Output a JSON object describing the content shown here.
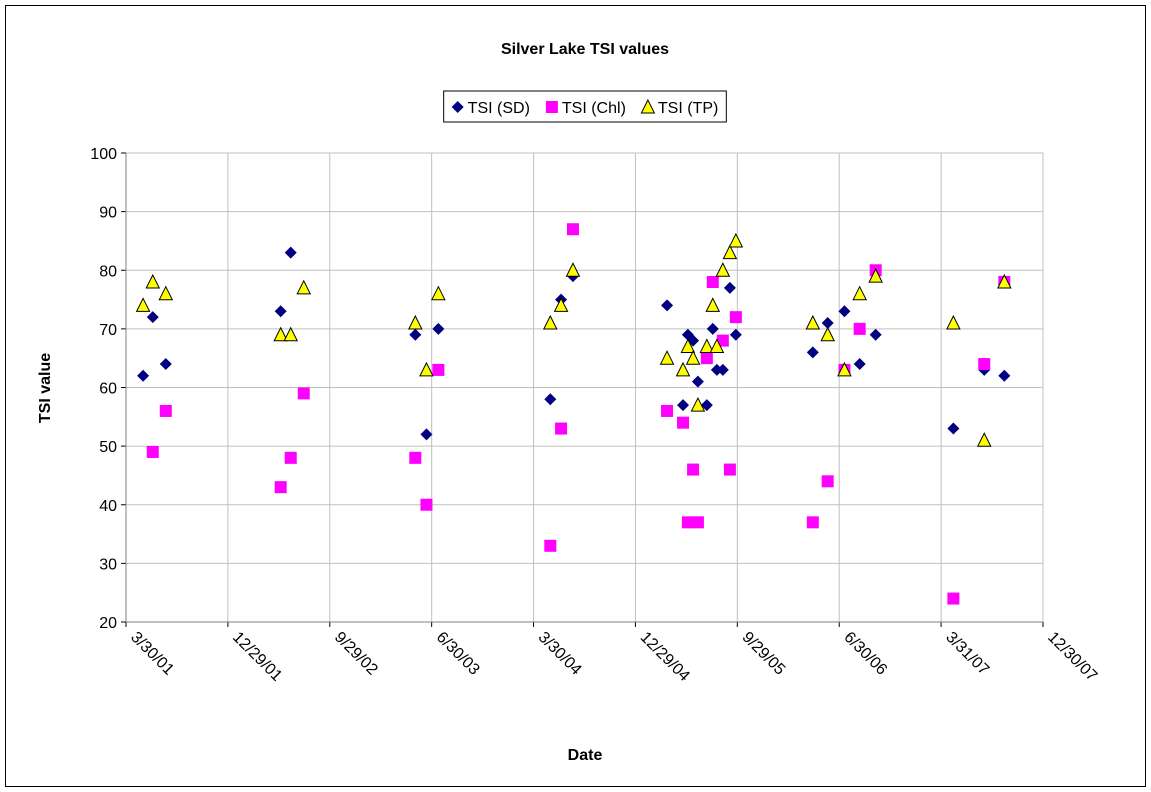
{
  "chart_data": {
    "type": "scatter",
    "title": "Silver Lake TSI values",
    "xlabel": "Date",
    "ylabel": "TSI value",
    "xlim": [
      "2001-03-30",
      "2007-12-30"
    ],
    "xticks": [
      {
        "value": "2001-03-30",
        "label": "3/30/01"
      },
      {
        "value": "2001-12-29",
        "label": "12/29/01"
      },
      {
        "value": "2002-09-29",
        "label": "9/29/02"
      },
      {
        "value": "2003-06-30",
        "label": "6/30/03"
      },
      {
        "value": "2004-03-30",
        "label": "3/30/04"
      },
      {
        "value": "2004-12-29",
        "label": "12/29/04"
      },
      {
        "value": "2005-09-29",
        "label": "9/29/05"
      },
      {
        "value": "2006-06-30",
        "label": "6/30/06"
      },
      {
        "value": "2007-03-31",
        "label": "3/31/07"
      },
      {
        "value": "2007-12-30",
        "label": "12/30/07"
      }
    ],
    "ylim": [
      20,
      100
    ],
    "yticks": [
      20,
      30,
      40,
      50,
      60,
      70,
      80,
      90,
      100
    ],
    "grid": true,
    "legend": "top",
    "series": [
      {
        "name": "TSI (SD)",
        "marker": "diamond",
        "color": "#000080",
        "x": [
          "2001-05-15",
          "2001-06-10",
          "2001-07-15",
          "2002-05-20",
          "2002-06-16",
          "2003-05-17",
          "2003-06-16",
          "2003-07-18",
          "2004-05-14",
          "2004-06-12",
          "2004-07-14",
          "2005-03-24",
          "2005-05-06",
          "2005-05-19",
          "2005-06-02",
          "2005-06-15",
          "2005-07-09",
          "2005-07-25",
          "2005-08-05",
          "2005-08-21",
          "2005-09-09",
          "2005-09-25",
          "2006-04-20",
          "2006-05-30",
          "2006-07-14",
          "2006-08-24",
          "2006-10-06",
          "2007-05-03",
          "2007-07-25",
          "2007-09-17"
        ],
        "values": [
          62,
          72,
          64,
          73,
          83,
          69,
          52,
          70,
          58,
          75,
          79,
          74,
          57,
          69,
          68,
          61,
          57,
          70,
          63,
          63,
          77,
          69,
          66,
          71,
          73,
          64,
          69,
          53,
          63,
          62
        ]
      },
      {
        "name": "TSI (Chl)",
        "marker": "square",
        "color": "#ff00ff",
        "x": [
          "2001-06-10",
          "2001-07-15",
          "2002-05-20",
          "2002-06-16",
          "2002-07-21",
          "2003-05-17",
          "2003-06-16",
          "2003-07-18",
          "2004-05-14",
          "2004-06-12",
          "2004-07-14",
          "2005-03-24",
          "2005-05-06",
          "2005-05-19",
          "2005-06-02",
          "2005-06-15",
          "2005-07-09",
          "2005-07-25",
          "2005-08-21",
          "2005-09-09",
          "2005-09-25",
          "2006-04-20",
          "2006-05-30",
          "2006-07-14",
          "2006-08-24",
          "2006-10-06",
          "2007-05-03",
          "2007-07-25",
          "2007-09-17"
        ],
        "values": [
          49,
          56,
          43,
          48,
          59,
          48,
          40,
          63,
          33,
          53,
          87,
          56,
          54,
          37,
          46,
          37,
          65,
          78,
          68,
          46,
          72,
          37,
          44,
          63,
          70,
          80,
          24,
          64,
          78
        ]
      },
      {
        "name": "TSI (TP)",
        "marker": "triangle",
        "color": "#ffff00",
        "x": [
          "2001-05-15",
          "2001-06-10",
          "2001-07-15",
          "2002-05-20",
          "2002-06-16",
          "2002-07-21",
          "2003-05-17",
          "2003-06-16",
          "2003-07-18",
          "2004-05-14",
          "2004-06-12",
          "2004-07-14",
          "2005-03-24",
          "2005-05-06",
          "2005-05-19",
          "2005-06-02",
          "2005-06-15",
          "2005-07-09",
          "2005-07-25",
          "2005-08-05",
          "2005-08-21",
          "2005-09-09",
          "2005-09-25",
          "2006-04-20",
          "2006-05-30",
          "2006-07-14",
          "2006-08-24",
          "2006-10-06",
          "2007-05-03",
          "2007-07-25",
          "2007-09-17"
        ],
        "values": [
          74,
          78,
          76,
          69,
          69,
          77,
          71,
          63,
          76,
          71,
          74,
          80,
          65,
          63,
          67,
          65,
          57,
          67,
          74,
          67,
          80,
          83,
          85,
          71,
          69,
          63,
          76,
          79,
          71,
          51,
          78
        ]
      }
    ]
  }
}
